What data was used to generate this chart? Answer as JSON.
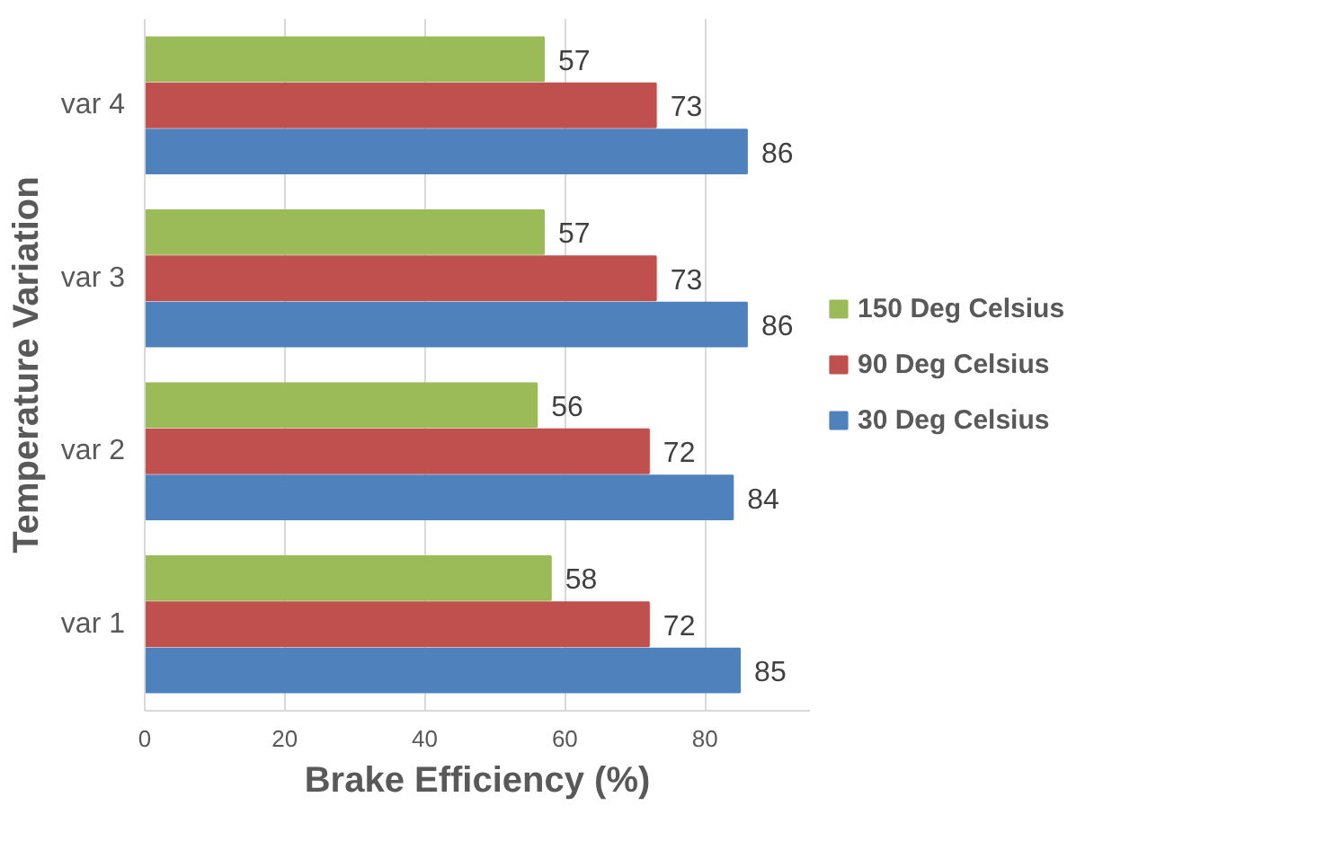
{
  "chart_data": {
    "type": "bar",
    "orientation": "horizontal",
    "xlabel": "Brake Efficiency (%)",
    "ylabel": "Temperature Variation",
    "categories": [
      "var 4",
      "var 3",
      "var 2",
      "var 1"
    ],
    "series": [
      {
        "name": "30 Deg Celsius",
        "color": "#4f81bd",
        "values": [
          86,
          86,
          84,
          85
        ]
      },
      {
        "name": "90 Deg Celsius",
        "color": "#c0504d",
        "values": [
          73,
          73,
          72,
          72
        ]
      },
      {
        "name": "150 Deg Celsius",
        "color": "#9bbb59",
        "values": [
          57,
          57,
          56,
          58
        ]
      }
    ],
    "xlim": [
      0,
      95
    ],
    "xticks": [
      0,
      20,
      40,
      60,
      80
    ],
    "grid": "x",
    "legend": "right",
    "data_labels": true
  }
}
